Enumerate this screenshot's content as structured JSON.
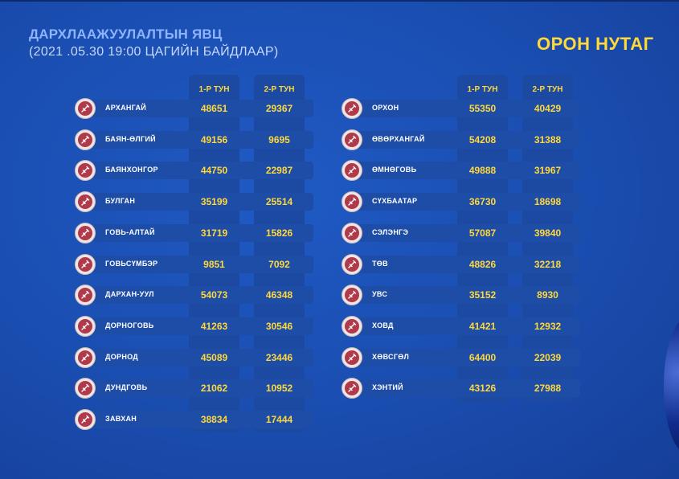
{
  "header": {
    "title": "ДАРХЛААЖУУЛАЛТЫН ЯВЦ",
    "subtitle": "(2021 .05.30     19:00 ЦАГИЙН БАЙДЛААР)",
    "region_title": "ОРОН НУТАГ"
  },
  "table": {
    "col1_label": "1-Р ТУН",
    "col2_label": "2-Р ТУН",
    "left_rows": [
      {
        "name": "АРХАНГАЙ",
        "dose1": "48651",
        "dose2": "29367"
      },
      {
        "name": "БАЯН-ӨЛГИЙ",
        "dose1": "49156",
        "dose2": "9695"
      },
      {
        "name": "БАЯНХОНГОР",
        "dose1": "44750",
        "dose2": "22987"
      },
      {
        "name": "БУЛГАН",
        "dose1": "35199",
        "dose2": "25514"
      },
      {
        "name": "ГОВЬ-АЛТАЙ",
        "dose1": "31719",
        "dose2": "15826"
      },
      {
        "name": "ГОВЬСҮМБЭР",
        "dose1": "9851",
        "dose2": "7092"
      },
      {
        "name": "ДАРХАН-УУЛ",
        "dose1": "54073",
        "dose2": "46348"
      },
      {
        "name": "ДОРНОГОВЬ",
        "dose1": "41263",
        "dose2": "30546"
      },
      {
        "name": "ДОРНОД",
        "dose1": "45089",
        "dose2": "23446"
      },
      {
        "name": "ДУНДГОВЬ",
        "dose1": "21062",
        "dose2": "10952"
      },
      {
        "name": "ЗАВХАН",
        "dose1": "38834",
        "dose2": "17444"
      }
    ],
    "right_rows": [
      {
        "name": "ОРХОН",
        "dose1": "55350",
        "dose2": "40429"
      },
      {
        "name": "ӨВӨРХАНГАЙ",
        "dose1": "54208",
        "dose2": "31388"
      },
      {
        "name": "ӨМНӨГОВЬ",
        "dose1": "49888",
        "dose2": "31967"
      },
      {
        "name": "СҮХБААТАР",
        "dose1": "36730",
        "dose2": "18698"
      },
      {
        "name": "СЭЛЭНГЭ",
        "dose1": "57087",
        "dose2": "39840"
      },
      {
        "name": "ТӨВ",
        "dose1": "48826",
        "dose2": "32218"
      },
      {
        "name": "УВС",
        "dose1": "35152",
        "dose2": "8930"
      },
      {
        "name": "ХОВД",
        "dose1": "41421",
        "dose2": "12932"
      },
      {
        "name": "ХӨВСГӨЛ",
        "dose1": "64400",
        "dose2": "22039"
      },
      {
        "name": "ХЭНТИЙ",
        "dose1": "43126",
        "dose2": "27988"
      }
    ]
  },
  "icons": {
    "row_icon": "syringe-icon"
  },
  "colors": {
    "background": "#1a4fb3",
    "value_text": "#ffd83a",
    "title_text": "#8fb4ff",
    "icon_fill": "#b0394a"
  }
}
